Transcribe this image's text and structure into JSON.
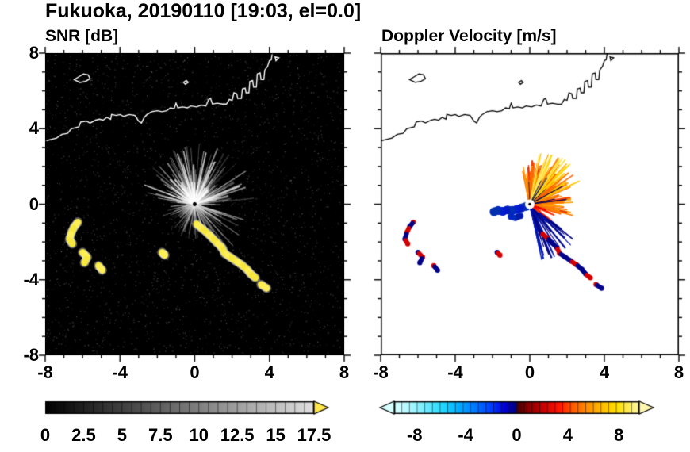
{
  "header": {
    "title": "Fukuoka, 20190110 [19:03, el=0.0]"
  },
  "chart_data": [
    {
      "id": "snr",
      "type": "heatmap",
      "title": "SNR [dB]",
      "xlim": [
        -8,
        8
      ],
      "ylim": [
        -8,
        8
      ],
      "xtick_values": [
        -8,
        -4,
        0,
        4,
        8
      ],
      "ytick_values": [
        8,
        4,
        0,
        -4,
        -8
      ],
      "xtick_labels": [
        "-8",
        "-4",
        "0",
        "4",
        "8"
      ],
      "ytick_labels": [
        "8",
        "4",
        "0",
        "-4",
        "-8"
      ],
      "background": "#000000",
      "radar_center": [
        0,
        0
      ],
      "noise": {
        "count": 2600,
        "color": "#ffffff"
      },
      "echo_fans": [
        {
          "name": "clutter-all-around",
          "angle_deg": [
            0,
            360
          ],
          "count": 300,
          "rmin": 0.3,
          "rmax": 1.9,
          "width": [
            0.6,
            1.5
          ],
          "palette": [
            "rgba(235,235,235,0.45)",
            "rgba(200,200,200,0.35)",
            "rgba(150,150,150,0.28)"
          ]
        },
        {
          "name": "clutter-upper-dense",
          "angle_deg": [
            5,
            175
          ],
          "count": 150,
          "rmin": 0.7,
          "rmax": 3.3,
          "width": [
            0.7,
            1.8
          ],
          "palette": [
            "rgba(245,245,245,0.55)",
            "rgba(210,210,210,0.4)",
            "rgba(170,170,170,0.3)"
          ]
        },
        {
          "name": "clutter-lower-right",
          "angle_deg": [
            -75,
            -15
          ],
          "count": 30,
          "rmin": 0.6,
          "rmax": 3.4,
          "width": [
            0.7,
            1.5
          ],
          "palette": [
            "rgba(225,225,225,0.5)",
            "rgba(180,180,180,0.35)"
          ]
        },
        {
          "name": "clutter-lower-left-sparse",
          "angle_deg": [
            190,
            240
          ],
          "count": 18,
          "rmin": 0.4,
          "rmax": 1.5,
          "width": [
            0.6,
            1.2
          ],
          "palette": [
            "rgba(190,190,190,0.35)"
          ]
        },
        {
          "name": "bright-rays",
          "angle_deg": [
            20,
            160
          ],
          "count": 25,
          "rmin": 1.0,
          "rmax": 3.0,
          "width": [
            1.2,
            2.2
          ],
          "palette": [
            "rgba(255,255,255,0.75)"
          ]
        }
      ],
      "yellow_echo_chains": [
        {
          "points": [
            [
              -6.25,
              -0.95
            ],
            [
              -6.45,
              -1.2
            ],
            [
              -6.6,
              -1.5
            ],
            [
              -6.7,
              -1.85
            ],
            [
              -6.55,
              -2.1
            ]
          ]
        },
        {
          "points": [
            [
              -6.0,
              -2.55
            ],
            [
              -5.75,
              -2.8
            ],
            [
              -5.9,
              -3.1
            ]
          ]
        },
        {
          "points": [
            [
              -5.15,
              -3.25
            ],
            [
              -4.95,
              -3.5
            ]
          ]
        },
        {
          "points": [
            [
              0.1,
              -1.05
            ],
            [
              0.4,
              -1.3
            ],
            [
              0.7,
              -1.55
            ],
            [
              0.95,
              -1.8
            ],
            [
              1.2,
              -2.05
            ],
            [
              1.45,
              -2.3
            ],
            [
              1.6,
              -2.6
            ],
            [
              1.9,
              -2.8
            ],
            [
              2.2,
              -3.0
            ],
            [
              2.5,
              -3.2
            ],
            [
              2.8,
              -3.45
            ],
            [
              3.0,
              -3.7
            ],
            [
              3.25,
              -3.9
            ]
          ]
        },
        {
          "points": [
            [
              3.55,
              -4.25
            ],
            [
              3.85,
              -4.45
            ]
          ]
        },
        {
          "points": [
            [
              -1.75,
              -2.55
            ],
            [
              -1.6,
              -2.7
            ]
          ]
        }
      ],
      "colorbar": {
        "min": 0,
        "max": 17.5,
        "tick_values": [
          0,
          2.5,
          5,
          7.5,
          10,
          12.5,
          15,
          17.5
        ],
        "tick_labels": [
          "0",
          "2.5",
          "5",
          "7.5",
          "10",
          "12.5",
          "15",
          "17.5"
        ],
        "fine_ticks": 28,
        "gradient": [
          [
            0,
            "#000000"
          ],
          [
            1,
            "#e0e0e0"
          ]
        ],
        "over_arrow": "#ffe84d"
      }
    },
    {
      "id": "doppler",
      "type": "heatmap",
      "title": "Doppler Velocity [m/s]",
      "xlim": [
        -8,
        8
      ],
      "ylim": [
        -8,
        8
      ],
      "xtick_values": [
        -8,
        -4,
        0,
        4,
        8
      ],
      "ytick_values": [
        8,
        4,
        0,
        -4,
        -8
      ],
      "xtick_labels": [
        "-8",
        "-4",
        "0",
        "4",
        "8"
      ],
      "ytick_labels": [],
      "background": "#ffffff",
      "radar_center": [
        0,
        0
      ],
      "velocity_fans": [
        {
          "name": "away-fan-main",
          "angle_deg": [
            -18,
            102
          ],
          "count": 260,
          "rmin": 0.25,
          "rmax": 2.4,
          "width": [
            1.2,
            2.6
          ],
          "palette": [
            "#ff4600",
            "#ff6400",
            "#ff8200",
            "#ffa000",
            "#e63200",
            "#ff7800"
          ]
        },
        {
          "name": "away-fan-long",
          "angle_deg": [
            25,
            90
          ],
          "count": 70,
          "rmin": 1.2,
          "rmax": 3.0,
          "width": [
            1.0,
            2.0
          ],
          "palette": [
            "#ff8200",
            "#ffaa00",
            "#ffc800",
            "#ff6400"
          ]
        },
        {
          "name": "away-yellow-tips",
          "angle_deg": [
            40,
            80
          ],
          "count": 18,
          "rmin": 2.0,
          "rmax": 3.1,
          "width": [
            1.0,
            1.8
          ],
          "palette": [
            "#ffd800",
            "#ffe860"
          ]
        },
        {
          "name": "toward-streaks-downright",
          "angle_deg": [
            -78,
            -38
          ],
          "count": 55,
          "rmin": 0.4,
          "rmax": 3.2,
          "width": [
            1.0,
            2.2
          ],
          "palette": [
            "#000080",
            "#0018b4",
            "#000a96"
          ]
        },
        {
          "name": "thin-navy-rays",
          "angle_deg": [
            0,
            95
          ],
          "count": 12,
          "rmin": 0.8,
          "rmax": 2.6,
          "width": [
            0.6,
            1.1
          ],
          "palette": [
            "#000050"
          ]
        },
        {
          "name": "red-streaks-lowright",
          "angle_deg": [
            -45,
            -15
          ],
          "count": 20,
          "rmin": 0.3,
          "rmax": 1.6,
          "width": [
            1.0,
            2.0
          ],
          "palette": [
            "#e60000",
            "#ff3200"
          ]
        }
      ],
      "toward_echo_blobs": [
        {
          "points": [
            [
              -0.2,
              -0.12
            ],
            [
              -0.45,
              -0.2
            ],
            [
              -0.7,
              -0.28
            ],
            [
              -0.95,
              -0.33
            ],
            [
              -1.2,
              -0.3
            ],
            [
              -1.45,
              -0.38
            ],
            [
              -1.7,
              -0.33
            ],
            [
              -1.92,
              -0.4
            ]
          ],
          "r": 5.5,
          "colors": [
            "#0020d0",
            "#0030b0",
            "#0018c8"
          ]
        },
        {
          "points": [
            [
              -0.5,
              -0.62
            ],
            [
              -0.78,
              -0.72
            ],
            [
              -1.02,
              -0.66
            ]
          ],
          "r": 4,
          "colors": [
            "#0028c0",
            "#001aa8"
          ]
        }
      ],
      "mixed_echo_chains": [
        {
          "points": [
            [
              -6.25,
              -0.95
            ],
            [
              -6.45,
              -1.2
            ],
            [
              -6.6,
              -1.5
            ],
            [
              -6.7,
              -1.85
            ],
            [
              -6.55,
              -2.1
            ]
          ],
          "colors": [
            "#d40000",
            "#000088"
          ]
        },
        {
          "points": [
            [
              -6.0,
              -2.55
            ],
            [
              -5.75,
              -2.8
            ],
            [
              -5.9,
              -3.1
            ]
          ],
          "colors": [
            "#000088",
            "#d40000"
          ]
        },
        {
          "points": [
            [
              -5.15,
              -3.25
            ],
            [
              -4.95,
              -3.5
            ]
          ],
          "colors": [
            "#d40000",
            "#000088"
          ]
        },
        {
          "points": [
            [
              0.6,
              -1.5
            ],
            [
              0.95,
              -1.8
            ],
            [
              1.2,
              -2.05
            ],
            [
              1.45,
              -2.3
            ],
            [
              1.6,
              -2.6
            ],
            [
              1.9,
              -2.8
            ],
            [
              2.2,
              -3.0
            ],
            [
              2.5,
              -3.2
            ],
            [
              2.8,
              -3.45
            ],
            [
              3.0,
              -3.7
            ],
            [
              3.25,
              -3.9
            ]
          ],
          "colors": [
            "#000088",
            "#d40000",
            "#000088"
          ]
        },
        {
          "points": [
            [
              3.55,
              -4.25
            ],
            [
              3.85,
              -4.45
            ]
          ],
          "colors": [
            "#d40000",
            "#000088"
          ]
        },
        {
          "points": [
            [
              -1.75,
              -2.55
            ],
            [
              -1.6,
              -2.7
            ]
          ],
          "colors": [
            "#000088",
            "#d40000"
          ]
        }
      ],
      "colorbar": {
        "min": -9.6,
        "max": 9.6,
        "tick_values": [
          -8,
          -4,
          0,
          4,
          8
        ],
        "tick_labels": [
          "-8",
          "-4",
          "0",
          "4",
          "8"
        ],
        "fine_ticks": 32,
        "gradient": [
          [
            0.0,
            "#d8ffff"
          ],
          [
            0.06,
            "#b0f8ff"
          ],
          [
            0.13,
            "#70ecff"
          ],
          [
            0.2,
            "#20d8ff"
          ],
          [
            0.27,
            "#00a8ff"
          ],
          [
            0.34,
            "#0070ff"
          ],
          [
            0.4,
            "#0038ff"
          ],
          [
            0.45,
            "#0000d8"
          ],
          [
            0.495,
            "#000080"
          ],
          [
            0.505,
            "#480000"
          ],
          [
            0.55,
            "#8c0000"
          ],
          [
            0.61,
            "#c80000"
          ],
          [
            0.67,
            "#ff1400"
          ],
          [
            0.73,
            "#ff5a00"
          ],
          [
            0.79,
            "#ff9000"
          ],
          [
            0.85,
            "#ffbe00"
          ],
          [
            0.91,
            "#ffe000"
          ],
          [
            1.0,
            "#fff6a8"
          ]
        ],
        "under_arrow": "#d8ffff",
        "over_arrow": "#fff6b0"
      }
    }
  ],
  "coastline": {
    "mainland": [
      [
        -8.0,
        3.35
      ],
      [
        -7.4,
        3.5
      ],
      [
        -7.1,
        3.7
      ],
      [
        -6.8,
        3.75
      ],
      [
        -6.6,
        4.0
      ],
      [
        -6.2,
        4.1
      ],
      [
        -6.1,
        4.35
      ],
      [
        -5.8,
        4.4
      ],
      [
        -5.6,
        4.3
      ],
      [
        -5.3,
        4.45
      ],
      [
        -5.1,
        4.5
      ],
      [
        -4.9,
        4.45
      ],
      [
        -4.7,
        4.6
      ],
      [
        -4.5,
        4.5
      ],
      [
        -4.45,
        4.75
      ],
      [
        -4.2,
        4.7
      ],
      [
        -4.0,
        4.75
      ],
      [
        -3.8,
        4.65
      ],
      [
        -3.5,
        4.75
      ],
      [
        -3.2,
        4.7
      ],
      [
        -3.0,
        4.4
      ],
      [
        -2.85,
        4.3
      ],
      [
        -2.7,
        4.6
      ],
      [
        -2.55,
        4.75
      ],
      [
        -2.3,
        4.9
      ],
      [
        -2.0,
        4.95
      ],
      [
        -1.75,
        4.9
      ],
      [
        -1.5,
        4.95
      ],
      [
        -1.3,
        5.1
      ],
      [
        -1.1,
        5.05
      ],
      [
        -1.0,
        5.35
      ],
      [
        -0.9,
        5.1
      ],
      [
        -0.65,
        5.15
      ],
      [
        -0.4,
        5.1
      ],
      [
        -0.2,
        5.2
      ],
      [
        0.1,
        5.15
      ],
      [
        0.35,
        5.25
      ],
      [
        0.6,
        5.2
      ],
      [
        0.75,
        5.55
      ],
      [
        0.85,
        5.6
      ],
      [
        0.95,
        5.3
      ],
      [
        1.2,
        5.35
      ],
      [
        1.5,
        5.3
      ],
      [
        1.7,
        5.3
      ],
      [
        1.85,
        5.55
      ],
      [
        2.0,
        5.5
      ],
      [
        2.1,
        5.9
      ],
      [
        2.25,
        5.85
      ],
      [
        2.3,
        5.6
      ],
      [
        2.5,
        5.6
      ],
      [
        2.55,
        6.1
      ],
      [
        2.7,
        6.15
      ],
      [
        2.75,
        5.9
      ],
      [
        2.9,
        5.9
      ],
      [
        2.95,
        6.5
      ],
      [
        3.1,
        6.55
      ],
      [
        3.15,
        6.2
      ],
      [
        3.3,
        6.2
      ],
      [
        3.35,
        6.9
      ],
      [
        3.5,
        6.95
      ],
      [
        3.55,
        6.6
      ],
      [
        3.7,
        6.6
      ],
      [
        3.75,
        7.1
      ],
      [
        3.9,
        7.3
      ],
      [
        4.0,
        7.6
      ],
      [
        4.1,
        7.65
      ],
      [
        4.15,
        8.0
      ]
    ],
    "islands": [
      [
        [
          -6.45,
          6.6
        ],
        [
          -6.2,
          6.75
        ],
        [
          -5.95,
          6.9
        ],
        [
          -5.7,
          6.85
        ],
        [
          -5.6,
          6.65
        ],
        [
          -5.85,
          6.5
        ],
        [
          -6.15,
          6.45
        ]
      ],
      [
        [
          -0.5,
          6.35
        ],
        [
          -0.35,
          6.45
        ],
        [
          -0.45,
          6.55
        ],
        [
          -0.6,
          6.45
        ]
      ],
      [
        [
          4.35,
          7.6
        ],
        [
          4.5,
          7.75
        ],
        [
          4.3,
          7.8
        ]
      ]
    ]
  }
}
